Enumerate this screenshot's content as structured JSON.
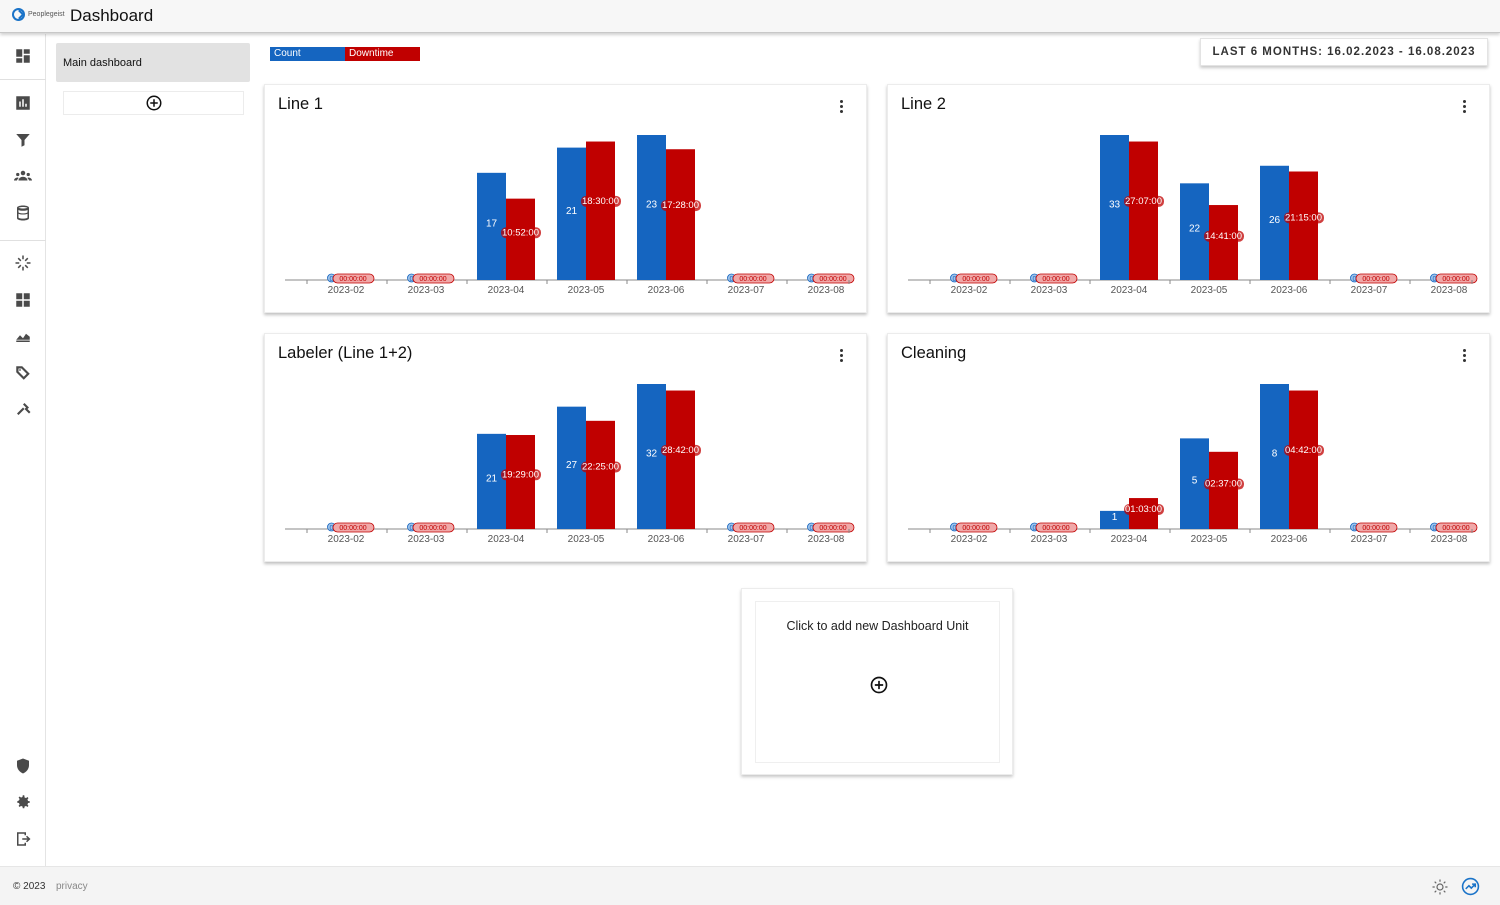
{
  "app": {
    "logo_text": "Peoplegeist",
    "page_title": "Dashboard"
  },
  "sidebar": {
    "items": [
      "dashboard-icon",
      "bar-chart-icon",
      "filter-icon",
      "people-icon",
      "database-icon",
      "loader-icon",
      "widgets-icon",
      "area-chart-icon",
      "tag-search-icon",
      "tools-icon"
    ],
    "bottom": [
      "security-icon",
      "settings-icon",
      "logout-icon"
    ]
  },
  "dashboards": {
    "items": [
      {
        "label": "Main dashboard"
      }
    ],
    "add_icon": "plus-circle-icon"
  },
  "legend": [
    {
      "label": "Count",
      "color": "#1565c0"
    },
    {
      "label": "Downtime",
      "color": "#c00000"
    }
  ],
  "daterange": {
    "label": "LAST 6 MONTHS: 16.02.2023 - 16.08.2023"
  },
  "colors": {
    "count": "#1565c0",
    "downtime": "#c00000",
    "axis": "#888888"
  },
  "chart_data": [
    {
      "type": "bar",
      "title": "Line 1",
      "categories": [
        "2023-02",
        "2023-03",
        "2023-04",
        "2023-05",
        "2023-06",
        "2023-07",
        "2023-08"
      ],
      "series": [
        {
          "name": "Count",
          "values": [
            0,
            0,
            17,
            21,
            23,
            0,
            0
          ],
          "labels": [
            "0",
            "0",
            "17",
            "21",
            "23",
            "0",
            "0"
          ]
        },
        {
          "name": "Downtime",
          "values": [
            0,
            0,
            10.87,
            18.5,
            17.47,
            0,
            0
          ],
          "labels": [
            "00:00:00",
            "00:00:00",
            "10:52:00",
            "18:30:00",
            "17:28:00",
            "00:00:00",
            "00:00:00"
          ]
        }
      ]
    },
    {
      "type": "bar",
      "title": "Line 2",
      "categories": [
        "2023-02",
        "2023-03",
        "2023-04",
        "2023-05",
        "2023-06",
        "2023-07",
        "2023-08"
      ],
      "series": [
        {
          "name": "Count",
          "values": [
            0,
            0,
            33,
            22,
            26,
            0,
            0
          ],
          "labels": [
            "0",
            "0",
            "33",
            "22",
            "26",
            "0",
            "0"
          ]
        },
        {
          "name": "Downtime",
          "values": [
            0,
            0,
            27.12,
            14.68,
            21.25,
            0,
            0
          ],
          "labels": [
            "00:00:00",
            "00:00:00",
            "27:07:00",
            "14:41:00",
            "21:15:00",
            "00:00:00",
            "00:00:00"
          ]
        }
      ]
    },
    {
      "type": "bar",
      "title": "Labeler (Line 1+2)",
      "categories": [
        "2023-02",
        "2023-03",
        "2023-04",
        "2023-05",
        "2023-06",
        "2023-07",
        "2023-08"
      ],
      "series": [
        {
          "name": "Count",
          "values": [
            0,
            0,
            21,
            27,
            32,
            0,
            0
          ],
          "labels": [
            "0",
            "0",
            "21",
            "27",
            "32",
            "0",
            "0"
          ]
        },
        {
          "name": "Downtime",
          "values": [
            0,
            0,
            19.48,
            22.42,
            28.7,
            0,
            0
          ],
          "labels": [
            "00:00:00",
            "00:00:00",
            "19:29:00",
            "22:25:00",
            "28:42:00",
            "00:00:00",
            "00:00:00"
          ]
        }
      ]
    },
    {
      "type": "bar",
      "title": "Cleaning",
      "categories": [
        "2023-02",
        "2023-03",
        "2023-04",
        "2023-05",
        "2023-06",
        "2023-07",
        "2023-08"
      ],
      "series": [
        {
          "name": "Count",
          "values": [
            0,
            0,
            1,
            5,
            8,
            0,
            0
          ],
          "labels": [
            "0",
            "0",
            "1",
            "5",
            "8",
            "0",
            "0"
          ]
        },
        {
          "name": "Downtime",
          "values": [
            0,
            0,
            1.05,
            2.62,
            4.7,
            0,
            0
          ],
          "labels": [
            "00:00:00",
            "00:00:00",
            "01:03:00",
            "02:37:00",
            "04:42:00",
            "00:00:00",
            "00:00:00"
          ]
        }
      ]
    }
  ],
  "add_unit": {
    "label": "Click to add new Dashboard Unit"
  },
  "footer": {
    "copyright": "© 2023",
    "privacy": "privacy"
  }
}
